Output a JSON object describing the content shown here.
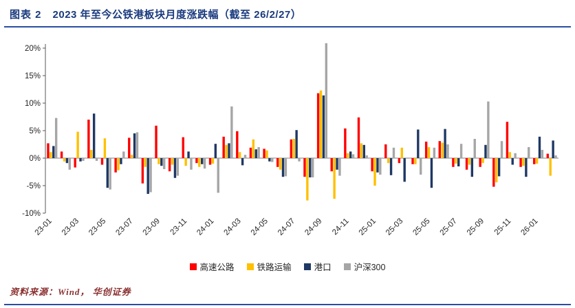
{
  "header": {
    "prefix": "图表 2",
    "title": "2023 年至今公铁港板块月度涨跌幅（截至 26/2/27）"
  },
  "footer": {
    "source": "资料来源：Wind， 华创证券"
  },
  "colors": {
    "title": "#1A3A7E",
    "divider": "#2A4DA0",
    "source_text": "#8B3030"
  },
  "chart_data": {
    "type": "bar",
    "title": "2023 年至今公铁港板块月度涨跌幅（截至 26/2/27）",
    "xlabel": "",
    "ylabel": "",
    "ylim": [
      -10,
      20
    ],
    "ytick_values": [
      20,
      15,
      10,
      5,
      0,
      -5,
      -10
    ],
    "ytick_labels": [
      "20%",
      "15%",
      "10%",
      "5%",
      "0%",
      "-5%",
      "-10%"
    ],
    "x_tick_every": 2,
    "grid": false,
    "legend_position": "bottom",
    "categories": [
      "23-01",
      "23-02",
      "23-03",
      "23-04",
      "23-05",
      "23-06",
      "23-07",
      "23-08",
      "23-09",
      "23-10",
      "23-11",
      "23-12",
      "24-01",
      "24-02",
      "24-03",
      "24-04",
      "24-05",
      "24-06",
      "24-07",
      "24-08",
      "24-09",
      "24-10",
      "24-11",
      "24-12",
      "25-01",
      "25-02",
      "25-03",
      "25-04",
      "25-05",
      "25-06",
      "25-07",
      "25-08",
      "25-09",
      "25-10",
      "25-11",
      "25-12",
      "26-01",
      "26-02"
    ],
    "series": [
      {
        "name": "高速公路",
        "color": "#FF0000",
        "values": [
          2.7,
          1.2,
          -1.7,
          7.0,
          -1.2,
          -2.6,
          3.7,
          -4.6,
          5.9,
          -2.4,
          3.8,
          -0.9,
          -1.2,
          3.9,
          4.9,
          1.9,
          1.7,
          -1.6,
          3.4,
          -3.4,
          11.8,
          -2.4,
          5.4,
          7.4,
          -2.4,
          2.5,
          -0.9,
          -1.1,
          3.0,
          3.1,
          -1.6,
          -2.1,
          -1.6,
          -5.2,
          6.6,
          -1.6,
          -1.1,
          0.8
        ]
      },
      {
        "name": "铁路运输",
        "color": "#FFC000",
        "values": [
          1.1,
          -0.6,
          4.8,
          1.5,
          3.6,
          -2.2,
          0.6,
          -1.6,
          -1.1,
          -1.2,
          -1.4,
          -1.6,
          -1.0,
          2.4,
          1.1,
          3.4,
          1.4,
          -2.1,
          3.5,
          -7.7,
          12.3,
          -7.4,
          0.9,
          2.7,
          -5.0,
          -0.9,
          1.9,
          -1.1,
          2.0,
          2.8,
          -1.0,
          -1.2,
          -0.9,
          -4.4,
          1.1,
          -1.4,
          -1.0,
          -3.2
        ]
      },
      {
        "name": "港口",
        "color": "#1F3864",
        "values": [
          2.2,
          -0.9,
          -0.6,
          8.1,
          -5.4,
          -1.1,
          4.5,
          -6.5,
          -1.4,
          -3.6,
          1.2,
          -1.1,
          2.6,
          2.7,
          -1.3,
          1.6,
          -0.6,
          -3.4,
          5.1,
          -3.5,
          11.4,
          -2.1,
          1.2,
          2.4,
          -2.6,
          -3.1,
          -4.3,
          5.2,
          -5.4,
          5.3,
          -1.5,
          -3.4,
          2.4,
          -3.3,
          -1.2,
          -3.4,
          3.9,
          3.2
        ]
      },
      {
        "name": "沪深300",
        "color": "#A6A6A6",
        "values": [
          7.3,
          -2.1,
          -0.5,
          -0.5,
          -5.7,
          1.2,
          4.7,
          -6.2,
          -2.0,
          -3.2,
          -2.1,
          -1.9,
          -6.3,
          9.4,
          0.6,
          2.0,
          -0.7,
          -3.3,
          -0.6,
          -3.5,
          20.9,
          -3.2,
          0.7,
          0.5,
          -3.0,
          1.9,
          -0.1,
          -3.0,
          1.9,
          2.5,
          2.6,
          3.5,
          10.3,
          3.1,
          0.9,
          2.0,
          1.5,
          0.5
        ]
      }
    ]
  }
}
